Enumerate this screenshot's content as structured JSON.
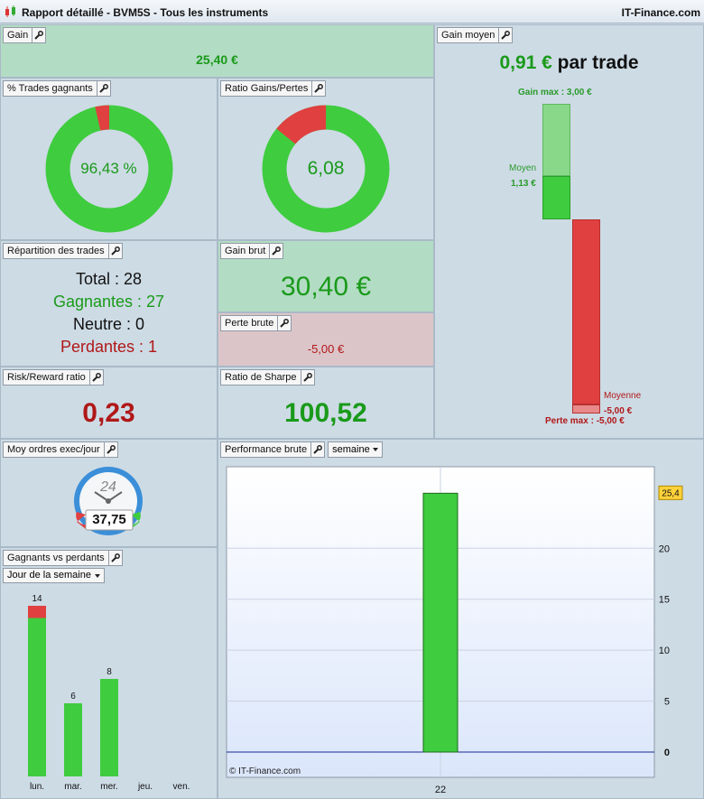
{
  "window": {
    "title": "Rapport détaillé - BVM5S - Tous les instruments",
    "brand": "IT-Finance.com"
  },
  "colors": {
    "green": "#3fcc3f",
    "red": "#e04040",
    "dark_green": "#1a9a1a",
    "dark_red": "#b01818"
  },
  "gain": {
    "title": "Gain",
    "value": "25,40 €"
  },
  "pct_trades": {
    "title": "% Trades gagnants",
    "value": "96,43 %",
    "fraction": 0.9643
  },
  "ratio_gp": {
    "title": "Ratio Gains/Pertes",
    "value": "6,08",
    "fraction": 0.8588
  },
  "gain_moyen": {
    "title": "Gain moyen",
    "value": "0,91 €",
    "suffix": "par trade",
    "gain_max_label": "Gain max : 3,00 €",
    "moyen_label": "Moyen",
    "moyen_value": "1,13 €",
    "moyenne_label": "Moyenne",
    "moyenne_value": "-5,00 €",
    "perte_max_label": "Perte max : -5,00 €"
  },
  "repartition": {
    "title": "Répartition des trades",
    "total": "Total : 28",
    "gagnantes": "Gagnantes : 27",
    "neutre": "Neutre : 0",
    "perdantes": "Perdantes : 1"
  },
  "gain_brut": {
    "title": "Gain brut",
    "value": "30,40 €"
  },
  "perte_brute": {
    "title": "Perte brute",
    "value": "-5,00 €"
  },
  "risk_reward": {
    "title": "Risk/Reward ratio",
    "value": "0,23"
  },
  "sharpe": {
    "title": "Ratio de Sharpe",
    "value": "100,52"
  },
  "moy_ordres": {
    "title": "Moy ordres exec/jour",
    "clock_number": "24",
    "value": "37,75"
  },
  "gagnants_perdants": {
    "title": "Gagnants vs perdants",
    "select": "Jour de la semaine",
    "chart_data": {
      "type": "bar",
      "categories": [
        "lun.",
        "mar.",
        "mer.",
        "jeu.",
        "ven."
      ],
      "series": [
        {
          "name": "",
          "values": [
            13,
            6,
            8,
            0,
            0
          ]
        },
        {
          "name": "",
          "values": [
            1,
            0,
            0,
            0,
            0
          ]
        }
      ],
      "totals": [
        "14",
        "6",
        "8",
        "",
        ""
      ],
      "ylim": [
        0,
        14
      ]
    }
  },
  "performance": {
    "title": "Performance brute",
    "select": "semaine",
    "watermark": "© IT-Finance.com",
    "chart_data": {
      "type": "bar",
      "categories": [
        "22"
      ],
      "values": [
        25.4
      ],
      "last_value_label": "25,4",
      "yticks": [
        "0",
        "5",
        "10",
        "15",
        "20"
      ],
      "ylim": [
        0,
        28
      ]
    }
  }
}
